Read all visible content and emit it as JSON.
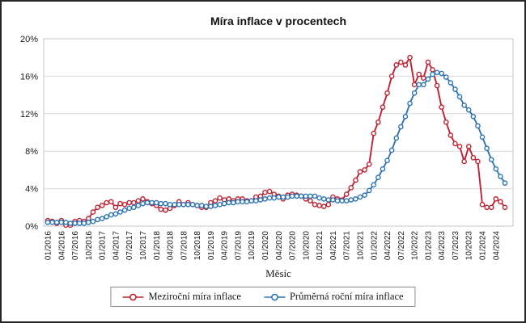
{
  "frame": {
    "background": "#FFFFFF",
    "border_color": "#262626",
    "grid_color": "#D9D9D9",
    "plot_border_color": "#C6C6C6"
  },
  "chart_data": {
    "type": "line",
    "title": "Míra inflace v procentech",
    "xlabel": "Měsíc",
    "ylabel": "",
    "ylim": [
      0,
      20
    ],
    "ytick_step": 4,
    "ytick_labels": [
      "0%",
      "4%",
      "8%",
      "12%",
      "16%",
      "20%"
    ],
    "xtick_step": 3,
    "grid": "horizontal",
    "legend_position": "bottom",
    "marker": "open-circle",
    "categories": [
      "01/2016",
      "02/2016",
      "03/2016",
      "04/2016",
      "05/2016",
      "06/2016",
      "07/2016",
      "08/2016",
      "09/2016",
      "10/2016",
      "11/2016",
      "12/2016",
      "01/2017",
      "02/2017",
      "03/2017",
      "04/2017",
      "05/2017",
      "06/2017",
      "07/2017",
      "08/2017",
      "09/2017",
      "10/2017",
      "11/2017",
      "12/2017",
      "01/2018",
      "02/2018",
      "03/2018",
      "04/2018",
      "05/2018",
      "06/2018",
      "07/2018",
      "08/2018",
      "09/2018",
      "10/2018",
      "11/2018",
      "12/2018",
      "01/2019",
      "02/2019",
      "03/2019",
      "04/2019",
      "05/2019",
      "06/2019",
      "07/2019",
      "08/2019",
      "09/2019",
      "10/2019",
      "11/2019",
      "12/2019",
      "01/2020",
      "02/2020",
      "03/2020",
      "04/2020",
      "05/2020",
      "06/2020",
      "07/2020",
      "08/2020",
      "09/2020",
      "10/2020",
      "11/2020",
      "12/2020",
      "01/2021",
      "02/2021",
      "03/2021",
      "04/2021",
      "05/2021",
      "06/2021",
      "07/2021",
      "08/2021",
      "09/2021",
      "10/2021",
      "11/2021",
      "12/2021",
      "01/2022",
      "02/2022",
      "03/2022",
      "04/2022",
      "05/2022",
      "06/2022",
      "07/2022",
      "08/2022",
      "09/2022",
      "10/2022",
      "11/2022",
      "12/2022",
      "01/2023",
      "02/2023",
      "03/2023",
      "04/2023",
      "05/2023",
      "06/2023",
      "07/2023",
      "08/2023",
      "09/2023",
      "10/2023",
      "11/2023",
      "12/2023",
      "01/2024",
      "02/2024",
      "03/2024",
      "04/2024",
      "05/2024",
      "06/2024"
    ],
    "series": [
      {
        "name": "Meziroční míra inflace",
        "color": "#BE2333",
        "values": [
          0.6,
          0.5,
          0.3,
          0.6,
          0.1,
          0.1,
          0.5,
          0.6,
          0.5,
          0.8,
          1.5,
          2.0,
          2.2,
          2.5,
          2.6,
          2.0,
          2.4,
          2.3,
          2.5,
          2.5,
          2.7,
          2.9,
          2.6,
          2.4,
          2.2,
          1.8,
          1.7,
          1.9,
          2.2,
          2.6,
          2.3,
          2.5,
          2.3,
          2.2,
          2.0,
          2.0,
          2.5,
          2.7,
          3.0,
          2.8,
          2.9,
          2.7,
          2.9,
          2.9,
          2.7,
          2.7,
          3.1,
          3.2,
          3.6,
          3.7,
          3.4,
          3.2,
          2.9,
          3.3,
          3.4,
          3.3,
          3.2,
          2.9,
          2.7,
          2.3,
          2.2,
          2.1,
          2.3,
          3.1,
          2.9,
          2.8,
          3.4,
          4.1,
          4.9,
          5.8,
          6.0,
          6.6,
          9.9,
          11.1,
          12.7,
          14.2,
          16.0,
          17.2,
          17.5,
          17.2,
          18.0,
          15.1,
          16.2,
          15.8,
          17.5,
          16.7,
          15.0,
          12.7,
          11.1,
          9.7,
          8.8,
          8.5,
          6.9,
          8.5,
          7.3,
          6.9,
          2.3,
          2.0,
          2.0,
          2.9,
          2.6,
          2.0
        ]
      },
      {
        "name": "Průměrná roční míra inflace",
        "color": "#2E75B6",
        "values": [
          0.4,
          0.4,
          0.4,
          0.4,
          0.4,
          0.3,
          0.3,
          0.3,
          0.3,
          0.4,
          0.5,
          0.7,
          0.8,
          1.0,
          1.2,
          1.3,
          1.5,
          1.7,
          1.9,
          2.0,
          2.2,
          2.4,
          2.5,
          2.5,
          2.5,
          2.4,
          2.4,
          2.3,
          2.3,
          2.3,
          2.3,
          2.3,
          2.3,
          2.2,
          2.2,
          2.1,
          2.1,
          2.2,
          2.3,
          2.4,
          2.5,
          2.5,
          2.6,
          2.6,
          2.6,
          2.7,
          2.7,
          2.8,
          2.9,
          3.0,
          3.0,
          3.1,
          3.1,
          3.1,
          3.2,
          3.2,
          3.2,
          3.2,
          3.2,
          3.2,
          3.0,
          2.9,
          2.8,
          2.8,
          2.7,
          2.7,
          2.7,
          2.8,
          2.9,
          3.1,
          3.3,
          3.8,
          4.4,
          5.2,
          6.1,
          7.0,
          8.1,
          9.4,
          10.6,
          11.7,
          13.1,
          14.2,
          15.1,
          15.1,
          15.7,
          16.2,
          16.4,
          16.3,
          15.9,
          15.3,
          14.6,
          13.8,
          12.9,
          12.4,
          11.7,
          10.7,
          9.5,
          8.3,
          7.1,
          6.1,
          5.3,
          4.6
        ]
      }
    ]
  }
}
